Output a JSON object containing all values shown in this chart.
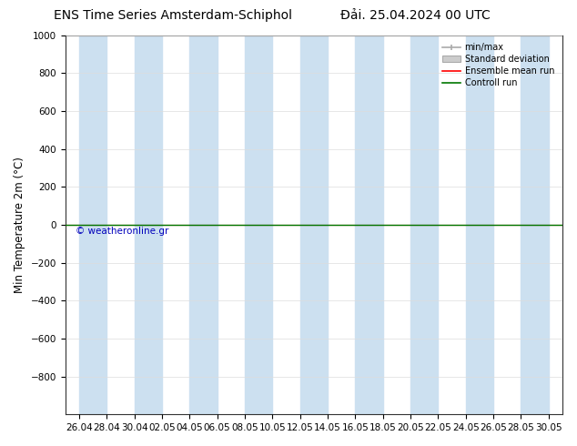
{
  "title_left": "ENS Time Series Amsterdam-Schiphol",
  "title_right": "Đải. 25.04.2024 00 UTC",
  "ylabel": "Min Temperature 2m (°C)",
  "ylim_top": -1000,
  "ylim_bottom": 1000,
  "yticks": [
    -800,
    -600,
    -400,
    -200,
    0,
    200,
    400,
    600,
    800,
    1000
  ],
  "x_tick_labels": [
    "26.04",
    "28.04",
    "30.04",
    "02.05",
    "04.05",
    "06.05",
    "08.05",
    "10.05",
    "12.05",
    "14.05",
    "16.05",
    "18.05",
    "20.05",
    "22.05",
    "24.05",
    "26.05",
    "28.05",
    "30.05"
  ],
  "x_tick_positions": [
    0,
    2,
    4,
    6,
    8,
    10,
    12,
    14,
    16,
    18,
    20,
    22,
    24,
    26,
    28,
    30,
    32,
    34
  ],
  "shaded_color": "#cce0f0",
  "bg_color": "#ffffff",
  "plot_bg_color": "#ffffff",
  "green_line_y": 0,
  "red_line_y": 0,
  "green_line_color": "#007700",
  "red_line_color": "#ff0000",
  "watermark": "© weatheronline.gr",
  "watermark_color": "#0000bb",
  "legend_items": [
    "min/max",
    "Standard deviation",
    "Ensemble mean run",
    "Controll run"
  ],
  "legend_line_color": "#aaaaaa",
  "legend_std_color": "#cccccc",
  "legend_ens_color": "#ff0000",
  "legend_ctrl_color": "#007700",
  "title_fontsize": 10,
  "tick_fontsize": 7.5,
  "ylabel_fontsize": 8.5
}
